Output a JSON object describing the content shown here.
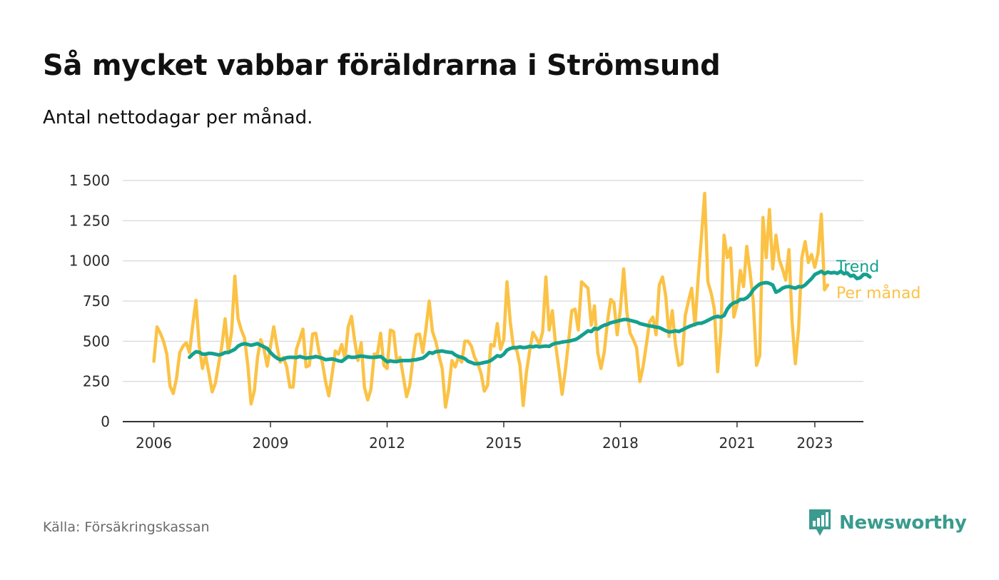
{
  "header": {
    "title": "Så mycket vabbar föräldrarna i Strömsund",
    "subtitle": "Antal nettodagar per månad."
  },
  "footer": {
    "source": "Källa: Försäkringskassan",
    "brand": "Newsworthy",
    "brand_icon": "bar-chart-badge-icon"
  },
  "colors": {
    "trend": "#14a08f",
    "monthly": "#fbc245",
    "grid": "#dddddd",
    "axis": "#333333",
    "brand": "#3a9b8e"
  },
  "chart_data": {
    "type": "line",
    "title": "Så mycket vabbar föräldrarna i Strömsund",
    "subtitle": "Antal nettodagar per månad.",
    "xlabel": "",
    "ylabel": "",
    "xlim": [
      2005.2,
      2024.25
    ],
    "ylim": [
      0,
      1500
    ],
    "yticks": [
      {
        "value": 0,
        "label": "0"
      },
      {
        "value": 250,
        "label": "250"
      },
      {
        "value": 500,
        "label": "500"
      },
      {
        "value": 750,
        "label": "750"
      },
      {
        "value": 1000,
        "label": "1 000"
      },
      {
        "value": 1250,
        "label": "1 250"
      },
      {
        "value": 1500,
        "label": "1 500"
      }
    ],
    "xticks": [
      {
        "value": 2006,
        "label": "2006"
      },
      {
        "value": 2009,
        "label": "2009"
      },
      {
        "value": 2012,
        "label": "2012"
      },
      {
        "value": 2015,
        "label": "2015"
      },
      {
        "value": 2018,
        "label": "2018"
      },
      {
        "value": 2021,
        "label": "2021"
      },
      {
        "value": 2023,
        "label": "2023"
      }
    ],
    "grid": true,
    "x_unit": "decimal year, one point per month starting January 2006",
    "series": [
      {
        "name": "Per månad",
        "label": "Per månad",
        "start": 2006.0,
        "step": 0.083333,
        "values": [
          375,
          590,
          550,
          500,
          420,
          220,
          175,
          270,
          430,
          470,
          490,
          430,
          600,
          755,
          470,
          330,
          410,
          300,
          185,
          240,
          360,
          470,
          640,
          430,
          560,
          905,
          640,
          570,
          520,
          350,
          110,
          190,
          400,
          510,
          450,
          345,
          470,
          590,
          470,
          370,
          400,
          340,
          215,
          215,
          450,
          510,
          575,
          340,
          350,
          545,
          550,
          430,
          370,
          250,
          160,
          290,
          440,
          420,
          480,
          390,
          590,
          655,
          500,
          380,
          490,
          215,
          135,
          200,
          420,
          420,
          550,
          350,
          330,
          570,
          560,
          370,
          400,
          280,
          155,
          225,
          400,
          540,
          545,
          430,
          580,
          750,
          560,
          500,
          410,
          330,
          90,
          200,
          380,
          340,
          400,
          370,
          500,
          500,
          470,
          400,
          360,
          300,
          190,
          225,
          480,
          470,
          610,
          450,
          510,
          870,
          620,
          460,
          445,
          350,
          100,
          310,
          440,
          555,
          520,
          480,
          560,
          900,
          570,
          690,
          480,
          330,
          170,
          320,
          500,
          690,
          700,
          570,
          870,
          850,
          830,
          600,
          720,
          430,
          330,
          430,
          620,
          760,
          740,
          540,
          700,
          950,
          680,
          550,
          510,
          460,
          250,
          340,
          480,
          620,
          650,
          540,
          850,
          900,
          780,
          530,
          690,
          480,
          350,
          360,
          660,
          750,
          830,
          600,
          890,
          1150,
          1420,
          870,
          800,
          700,
          310,
          560,
          1160,
          1020,
          1080,
          650,
          730,
          940,
          840,
          1090,
          930,
          750,
          350,
          410,
          1270,
          1020,
          1320,
          950,
          1160,
          1010,
          950,
          880,
          1070,
          620,
          360,
          580,
          1020,
          1120,
          990,
          1040,
          960,
          1050,
          1290,
          820,
          850
        ]
      },
      {
        "name": "Trend",
        "label": "Trend",
        "start": 2006.917,
        "step": 0.083333,
        "values": [
          400,
          420,
          435,
          432,
          420,
          420,
          425,
          424,
          420,
          415,
          420,
          430,
          430,
          440,
          450,
          470,
          480,
          485,
          480,
          475,
          480,
          485,
          475,
          465,
          455,
          430,
          410,
          395,
          385,
          390,
          398,
          400,
          400,
          398,
          405,
          400,
          395,
          398,
          400,
          405,
          400,
          395,
          385,
          388,
          390,
          385,
          378,
          375,
          390,
          405,
          400,
          400,
          405,
          408,
          405,
          402,
          400,
          400,
          402,
          405,
          390,
          372,
          378,
          374,
          374,
          378,
          380,
          380,
          380,
          384,
          385,
          390,
          395,
          410,
          430,
          425,
          435,
          437,
          440,
          435,
          432,
          430,
          415,
          405,
          400,
          392,
          375,
          368,
          360,
          360,
          363,
          368,
          372,
          380,
          395,
          410,
          405,
          420,
          445,
          455,
          460,
          460,
          465,
          460,
          462,
          468,
          465,
          470,
          465,
          468,
          470,
          468,
          480,
          488,
          490,
          495,
          498,
          500,
          505,
          510,
          520,
          535,
          550,
          565,
          560,
          580,
          575,
          590,
          600,
          605,
          615,
          620,
          625,
          630,
          635,
          635,
          630,
          625,
          620,
          610,
          605,
          600,
          595,
          593,
          588,
          585,
          575,
          565,
          558,
          560,
          565,
          560,
          570,
          580,
          590,
          598,
          605,
          612,
          612,
          620,
          630,
          640,
          650,
          655,
          650,
          660,
          700,
          725,
          740,
          745,
          760,
          760,
          770,
          790,
          820,
          840,
          855,
          862,
          865,
          860,
          850,
          805,
          815,
          830,
          838,
          840,
          835,
          830,
          840,
          838,
          850,
          870,
          890,
          915,
          925,
          935,
          920,
          930,
          925,
          928,
          922,
          935,
          920,
          925,
          905,
          910,
          890,
          895,
          915,
          915,
          900
        ]
      }
    ]
  }
}
